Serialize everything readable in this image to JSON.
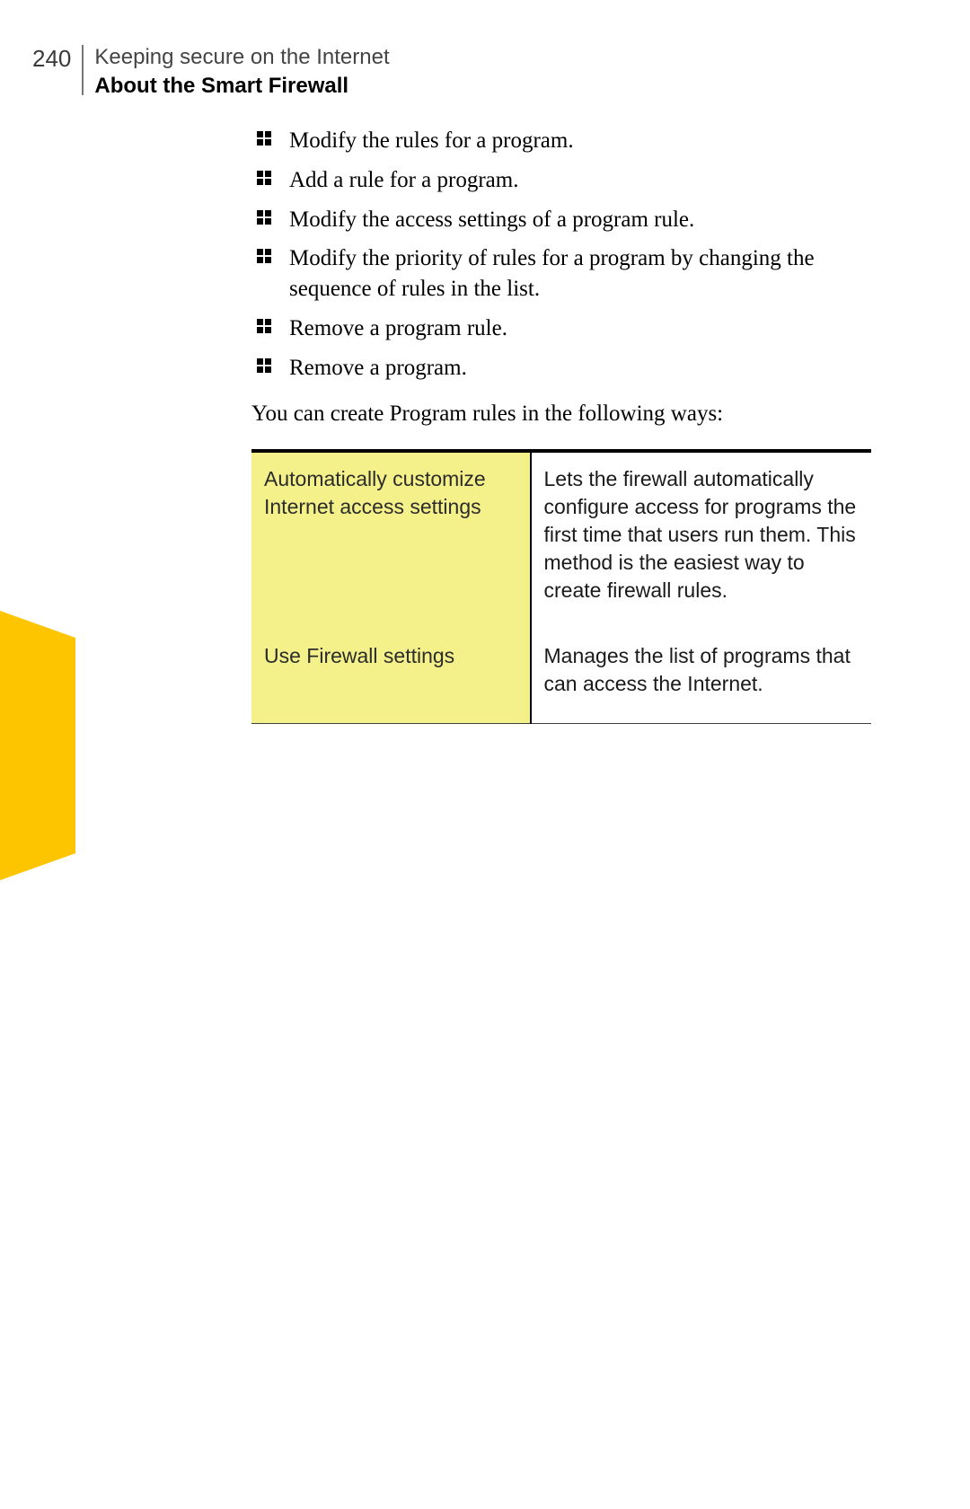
{
  "page_number": "240",
  "chapter_title": "Keeping secure on the Internet",
  "section_title": "About the Smart Firewall",
  "bullets": [
    "Modify the rules for a program.",
    "Add a rule for a program.",
    "Modify the access settings of a program rule.",
    "Modify the priority of rules for a program by changing the sequence of rules in the list.",
    "Remove a program rule.",
    "Remove a program."
  ],
  "intro_text": "You can create Program rules in the following ways:",
  "table": {
    "rows": [
      {
        "left": "Automatically customize Internet access settings",
        "right": "Lets the firewall automatically configure access for programs the first time that users run them. This method is the easiest way to create firewall rules."
      },
      {
        "left": "Use Firewall settings",
        "right": "Manages the list of programs that can access the Internet."
      }
    ]
  },
  "colors": {
    "highlight_bg": "#f5f18a",
    "tab_bg": "#fdc400",
    "table_border": "#000000"
  }
}
